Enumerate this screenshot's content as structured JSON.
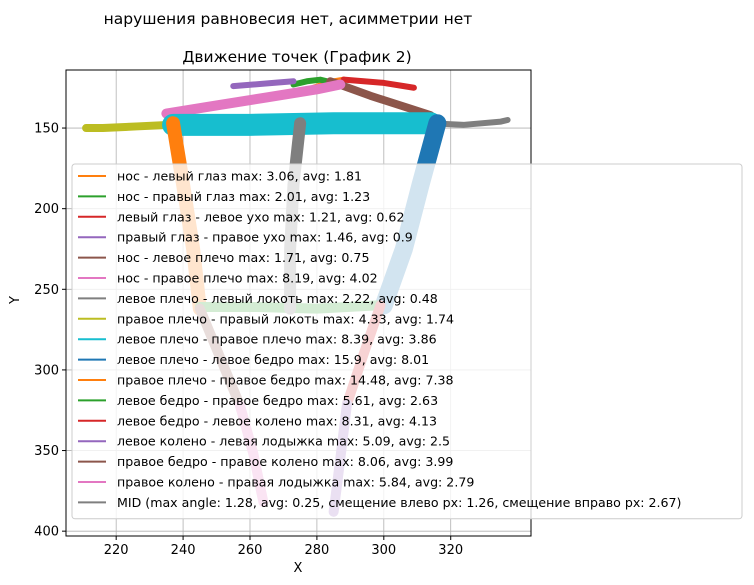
{
  "figure_title": "нарушения равновесия нет, асимметрии нет",
  "chart_data": {
    "type": "line",
    "title": "Движение точек (График 2)",
    "xlabel": "X",
    "ylabel": "Y",
    "xlim": [
      205,
      344
    ],
    "ylim": [
      403,
      114
    ],
    "y_inverted": true,
    "grid": true,
    "xticks": [
      "220",
      "240",
      "260",
      "280",
      "300",
      "320"
    ],
    "yticks": [
      "150",
      "200",
      "250",
      "300",
      "350",
      "400"
    ],
    "legend_position": "right, overflowing the axes",
    "series": [
      {
        "name": "нос - левый глаз max: 3.06, avg: 1.81",
        "color": "#ff7f0e",
        "x": [
          279,
          282,
          285,
          288
        ],
        "y": [
          125,
          123,
          121,
          120
        ]
      },
      {
        "name": "нос - правый глаз max: 2.01, avg: 1.23",
        "color": "#2ca02c",
        "x": [
          273,
          277,
          281,
          285
        ],
        "y": [
          123,
          121,
          120,
          122
        ]
      },
      {
        "name": "левый глаз - левое ухо max: 1.21, avg: 0.62",
        "color": "#d62728",
        "x": [
          288,
          294,
          300,
          306,
          309
        ],
        "y": [
          120,
          121,
          122,
          124,
          125
        ]
      },
      {
        "name": "правый глаз - правое ухо max: 1.46, avg: 0.9",
        "color": "#9467bd",
        "x": [
          255,
          261,
          267,
          273
        ],
        "y": [
          124,
          123,
          122,
          121
        ]
      },
      {
        "name": "нос - левое плечо max: 1.71, avg: 0.75",
        "color": "#8c564b",
        "x": [
          284,
          296,
          308,
          314
        ],
        "y": [
          121,
          130,
          138,
          142
        ]
      },
      {
        "name": "нос - правое плечо max: 8.19, avg: 4.02",
        "color": "#e377c2",
        "x": [
          235,
          250,
          265,
          280,
          287
        ],
        "y": [
          141,
          136,
          131,
          126,
          123
        ]
      },
      {
        "name": "левое плечо - левый локоть max: 2.22, avg: 0.48",
        "color": "#7f7f7f",
        "x": [
          314,
          324,
          335,
          337
        ],
        "y": [
          147,
          148,
          146,
          145
        ]
      },
      {
        "name": "правое плечо - правый локоть max: 4.33, avg: 1.74",
        "color": "#bcbd22",
        "x": [
          236,
          226,
          216,
          211
        ],
        "y": [
          148,
          149,
          150,
          150
        ]
      },
      {
        "name": "левое плечо - правое плечо max: 8.39, avg: 3.86",
        "color": "#17becf",
        "x": [
          237,
          260,
          285,
          314
        ],
        "y": [
          148,
          148,
          147,
          147
        ]
      },
      {
        "name": "левое плечо - левое бедро max: 15.9, avg: 8.01",
        "color": "#1f77b4",
        "x": [
          316,
          311,
          306,
          300
        ],
        "y": [
          147,
          185,
          225,
          260
        ]
      },
      {
        "name": "правое плечо - правое бедро max: 14.48, avg: 7.38",
        "color": "#ff7f0e",
        "x": [
          237,
          240,
          243,
          245
        ],
        "y": [
          147,
          185,
          225,
          262
        ]
      },
      {
        "name": "левое бедро - правое бедро max: 5.61, avg: 2.63",
        "color": "#2ca02c",
        "x": [
          245,
          262,
          280,
          298
        ],
        "y": [
          261,
          261,
          262,
          260
        ]
      },
      {
        "name": "левое бедро - левое колено max: 8.31, avg: 4.13",
        "color": "#d62728",
        "x": [
          299,
          294,
          289
        ],
        "y": [
          260,
          290,
          321
        ]
      },
      {
        "name": "левое колено - левая лодыжка max: 5.09, avg: 2.5",
        "color": "#9467bd",
        "x": [
          289,
          287,
          285
        ],
        "y": [
          321,
          355,
          388
        ]
      },
      {
        "name": "правое бедро - правое колено max: 8.06, avg: 3.99",
        "color": "#8c564b",
        "x": [
          245,
          251,
          257
        ],
        "y": [
          262,
          292,
          322
        ]
      },
      {
        "name": "правое колено - правая лодыжка max: 5.84, avg: 2.79",
        "color": "#e377c2",
        "x": [
          257,
          261,
          264
        ],
        "y": [
          322,
          352,
          382
        ]
      },
      {
        "name": "MID (max angle: 1.28, avg: 0.25, смещение влево px: 1.26, смещение вправо px: 2.67)",
        "color": "#7f7f7f",
        "x": [
          275,
          273,
          272,
          272
        ],
        "y": [
          147,
          185,
          225,
          262
        ]
      }
    ]
  }
}
